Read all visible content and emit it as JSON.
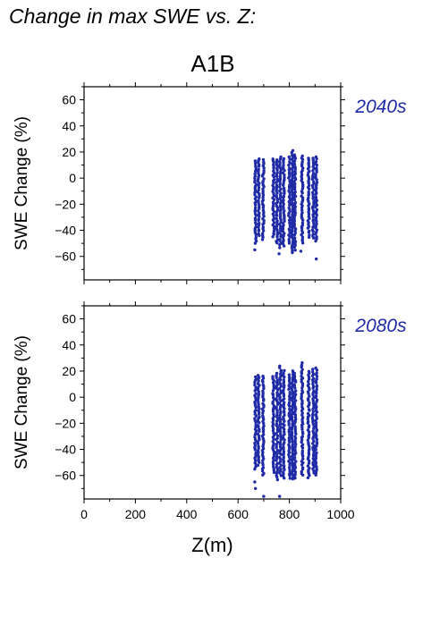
{
  "page": {
    "title": "Change in max SWE vs. Z:",
    "scenario": "A1B"
  },
  "colors": {
    "points": "#1f2aa6",
    "period_label": "#1f2aa6"
  },
  "chart_data": [
    {
      "type": "scatter",
      "period_label": "2040s",
      "ylabel": "SWE Change (%)",
      "xlabel": "",
      "xlim": [
        0,
        1000
      ],
      "ylim": [
        -78,
        70
      ],
      "yticks": [
        -60,
        -40,
        -20,
        0,
        20,
        40,
        60
      ],
      "xticks": [
        0,
        200,
        400,
        600,
        800,
        1000
      ],
      "show_x_tick_labels": false,
      "columns": [
        {
          "x": 668,
          "ymin": -50,
          "ymax": 13
        },
        {
          "x": 680,
          "ymin": -44,
          "ymax": 15
        },
        {
          "x": 698,
          "ymin": -47,
          "ymax": 14
        },
        {
          "x": 738,
          "ymin": -45,
          "ymax": 15
        },
        {
          "x": 752,
          "ymin": -50,
          "ymax": 14
        },
        {
          "x": 765,
          "ymin": -53,
          "ymax": 16
        },
        {
          "x": 778,
          "ymin": -52,
          "ymax": 15
        },
        {
          "x": 800,
          "ymin": -50,
          "ymax": 16
        },
        {
          "x": 812,
          "ymin": -57,
          "ymax": 21
        },
        {
          "x": 822,
          "ymin": -55,
          "ymax": 18
        },
        {
          "x": 850,
          "ymin": -50,
          "ymax": 17
        },
        {
          "x": 875,
          "ymin": -45,
          "ymax": 15
        },
        {
          "x": 893,
          "ymin": -46,
          "ymax": 15
        },
        {
          "x": 905,
          "ymin": -48,
          "ymax": 16
        }
      ],
      "outliers": [
        [
          665,
          -55
        ],
        [
          760,
          -58
        ],
        [
          845,
          -56
        ],
        [
          905,
          -62
        ]
      ]
    },
    {
      "type": "scatter",
      "period_label": "2080s",
      "ylabel": "SWE Change (%)",
      "xlabel": "Z(m)",
      "xlim": [
        0,
        1000
      ],
      "ylim": [
        -78,
        70
      ],
      "yticks": [
        -60,
        -40,
        -20,
        0,
        20,
        40,
        60
      ],
      "xticks": [
        0,
        200,
        400,
        600,
        800,
        1000
      ],
      "xtick_labels": [
        "0",
        "200",
        "400",
        "600",
        "800",
        "1000"
      ],
      "show_x_tick_labels": true,
      "columns": [
        {
          "x": 668,
          "ymin": -55,
          "ymax": 16
        },
        {
          "x": 680,
          "ymin": -52,
          "ymax": 17
        },
        {
          "x": 698,
          "ymin": -60,
          "ymax": 16
        },
        {
          "x": 738,
          "ymin": -58,
          "ymax": 16
        },
        {
          "x": 752,
          "ymin": -63,
          "ymax": 18
        },
        {
          "x": 765,
          "ymin": -60,
          "ymax": 24
        },
        {
          "x": 778,
          "ymin": -62,
          "ymax": 20
        },
        {
          "x": 800,
          "ymin": -62,
          "ymax": 17
        },
        {
          "x": 812,
          "ymin": -63,
          "ymax": 20
        },
        {
          "x": 822,
          "ymin": -62,
          "ymax": 18
        },
        {
          "x": 850,
          "ymin": -60,
          "ymax": 26
        },
        {
          "x": 875,
          "ymin": -62,
          "ymax": 20
        },
        {
          "x": 893,
          "ymin": -58,
          "ymax": 21
        },
        {
          "x": 905,
          "ymin": -60,
          "ymax": 22
        }
      ],
      "outliers": [
        [
          665,
          -65
        ],
        [
          668,
          -70
        ],
        [
          700,
          -76
        ],
        [
          762,
          -76
        ]
      ]
    }
  ]
}
